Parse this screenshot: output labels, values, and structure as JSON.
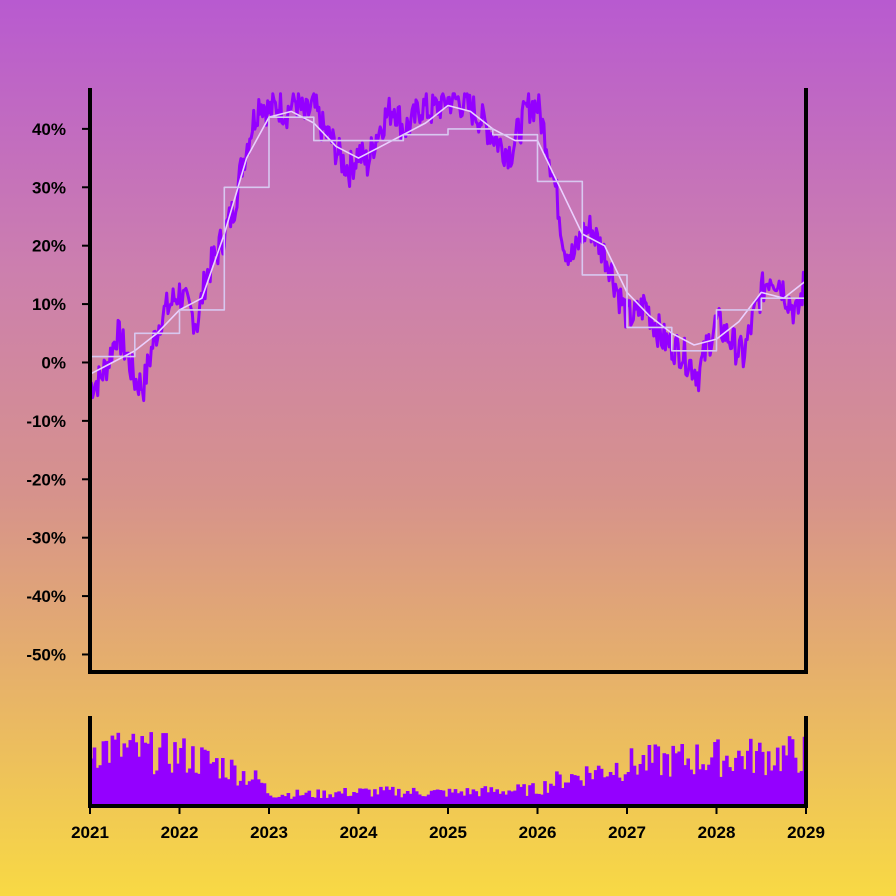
{
  "chart_data": [
    {
      "type": "line",
      "title": "",
      "xlabel": "",
      "ylabel": "",
      "y_tick_labels": [
        "40%",
        "30%",
        "20%",
        "10%",
        "0%",
        "-10%",
        "-20%",
        "-30%",
        "-40%",
        "-50%"
      ],
      "y_ticks": [
        40,
        30,
        20,
        10,
        0,
        -10,
        -20,
        -30,
        -40,
        -50
      ],
      "ylim": [
        -53,
        47
      ],
      "xlim": [
        2021,
        2029
      ],
      "grid": false,
      "colors": {
        "main": "#9400ff",
        "smooth": "#ead0ff",
        "step": "#d8c8f0"
      },
      "series": [
        {
          "role": "main",
          "x": [
            2021.0,
            2021.1,
            2021.2,
            2021.3,
            2021.4,
            2021.5,
            2021.6,
            2021.7,
            2021.8,
            2021.9,
            2022.0,
            2022.1,
            2022.2,
            2022.3,
            2022.4,
            2022.5,
            2022.6,
            2022.7,
            2022.8,
            2022.9,
            2023.0,
            2023.1,
            2023.2,
            2023.3,
            2023.4,
            2023.5,
            2023.6,
            2023.7,
            2023.8,
            2023.9,
            2024.0,
            2024.1,
            2024.2,
            2024.3,
            2024.4,
            2024.5,
            2024.6,
            2024.7,
            2024.8,
            2024.9,
            2025.0,
            2025.1,
            2025.2,
            2025.3,
            2025.4,
            2025.5,
            2025.6,
            2025.7,
            2025.8,
            2025.9,
            2026.0,
            2026.1,
            2026.2,
            2026.3,
            2026.4,
            2026.5,
            2026.6,
            2026.7,
            2026.8,
            2026.9,
            2027.0,
            2027.1,
            2027.2,
            2027.3,
            2027.4,
            2027.5,
            2027.6,
            2027.7,
            2027.8,
            2027.9,
            2028.0,
            2028.1,
            2028.2,
            2028.3,
            2028.4,
            2028.5,
            2028.6,
            2028.7,
            2028.8,
            2028.9,
            2029.0
          ],
          "y": [
            -4,
            -3,
            0,
            5,
            2,
            -3,
            -4,
            3,
            8,
            10,
            12,
            9,
            7,
            15,
            18,
            22,
            26,
            34,
            40,
            45,
            43,
            44,
            43,
            45,
            42,
            44,
            40,
            38,
            35,
            33,
            36,
            34,
            39,
            42,
            44,
            40,
            41,
            44,
            43,
            44,
            45,
            45,
            44,
            43,
            41,
            39,
            37,
            36,
            40,
            44,
            44,
            38,
            30,
            20,
            18,
            22,
            23,
            20,
            17,
            12,
            8,
            8,
            10,
            7,
            4,
            3,
            2,
            0,
            -2,
            3,
            7,
            5,
            3,
            1,
            7,
            12,
            15,
            14,
            11,
            8,
            15
          ]
        },
        {
          "role": "smooth",
          "x": [
            2021.0,
            2021.25,
            2021.5,
            2021.75,
            2022.0,
            2022.25,
            2022.5,
            2022.75,
            2023.0,
            2023.25,
            2023.5,
            2023.75,
            2024.0,
            2024.25,
            2024.5,
            2024.75,
            2025.0,
            2025.25,
            2025.5,
            2025.75,
            2026.0,
            2026.25,
            2026.5,
            2026.75,
            2027.0,
            2027.25,
            2027.5,
            2027.75,
            2028.0,
            2028.25,
            2028.5,
            2028.75,
            2029.0
          ],
          "y": [
            -2,
            0,
            2,
            5,
            9,
            11,
            22,
            35,
            42,
            43,
            41,
            37,
            35,
            37,
            39,
            41,
            44,
            43,
            40,
            38,
            38,
            30,
            22,
            20,
            12,
            8,
            5,
            3,
            4,
            7,
            12,
            11,
            14
          ]
        },
        {
          "role": "step",
          "x": [
            2021.0,
            2021.25,
            2021.5,
            2021.75,
            2022.0,
            2022.25,
            2022.5,
            2022.75,
            2023.0,
            2023.25,
            2023.5,
            2023.75,
            2024.0,
            2024.25,
            2024.5,
            2024.75,
            2025.0,
            2025.25,
            2025.5,
            2025.75,
            2026.0,
            2026.25,
            2026.5,
            2026.75,
            2027.0,
            2027.25,
            2027.5,
            2027.75,
            2028.0,
            2028.25,
            2028.5,
            2028.75,
            2029.0
          ],
          "y": [
            1,
            1,
            5,
            5,
            9,
            9,
            30,
            30,
            42,
            42,
            38,
            38,
            38,
            38,
            39,
            39,
            40,
            40,
            39,
            39,
            31,
            31,
            15,
            15,
            6,
            6,
            2,
            2,
            9,
            9,
            11,
            11,
            12
          ]
        }
      ]
    },
    {
      "type": "bar",
      "title": "",
      "x_tick_labels": [
        "2021",
        "2022",
        "2023",
        "2024",
        "2025",
        "2026",
        "2027",
        "2028",
        "2029"
      ],
      "x_ticks": [
        2021,
        2022,
        2023,
        2024,
        2025,
        2026,
        2027,
        2028,
        2029
      ],
      "xlim": [
        2021,
        2029
      ],
      "ylim": [
        0,
        100
      ],
      "color": "#9400ff",
      "envelope": {
        "x": [
          2021.0,
          2021.5,
          2022.0,
          2022.5,
          2022.9,
          2023.0,
          2023.5,
          2024.0,
          2024.5,
          2025.0,
          2025.5,
          2026.0,
          2026.2,
          2026.5,
          2027.0,
          2027.5,
          2028.0,
          2028.5,
          2029.0
        ],
        "y": [
          72,
          65,
          62,
          48,
          30,
          15,
          14,
          17,
          17,
          16,
          18,
          20,
          30,
          38,
          50,
          55,
          58,
          60,
          62
        ]
      }
    }
  ]
}
